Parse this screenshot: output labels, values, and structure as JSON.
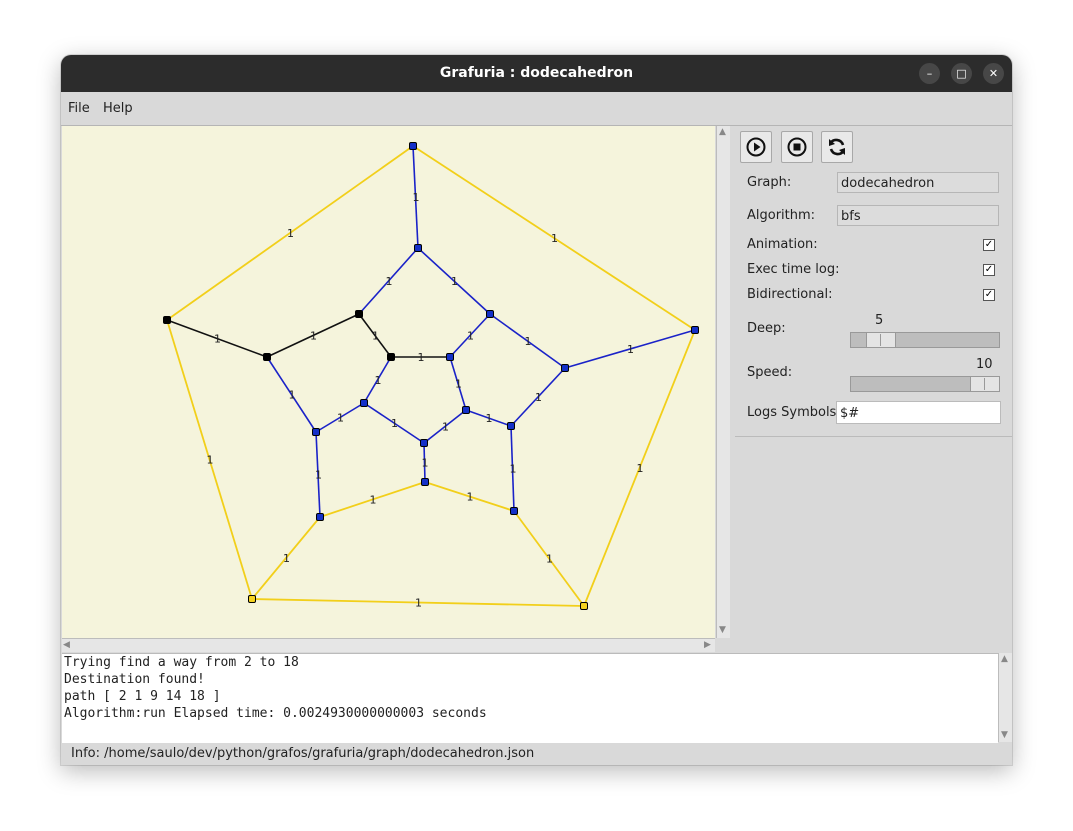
{
  "window": {
    "title": "Grafuria : dodecahedron",
    "controls": [
      "–",
      "□",
      "✕"
    ]
  },
  "menu": [
    "File",
    "Help"
  ],
  "toolbar": {
    "buttons": [
      {
        "name": "play-button",
        "icon": "play-icon"
      },
      {
        "name": "stop-button",
        "icon": "stop-icon"
      },
      {
        "name": "refresh-button",
        "icon": "refresh-icon"
      }
    ]
  },
  "panel": {
    "graph_label": "Graph:",
    "graph_value": "dodecahedron",
    "algorithm_label": "Algorithm:",
    "algorithm_value": "bfs",
    "animation_label": "Animation:",
    "animation_checked": true,
    "exec_time_label": "Exec time log:",
    "exec_time_checked": true,
    "bidirectional_label": "Bidirectional:",
    "bidirectional_checked": true,
    "deep_label": "Deep:",
    "deep_value": "5",
    "speed_label": "Speed:",
    "speed_value": "10",
    "logs_label": "Logs Symbols:",
    "logs_value": "$#"
  },
  "graph": {
    "edge_weight": "1",
    "colors": {
      "outer": "#f2cf1a",
      "visited": "#1a22c8",
      "path": "#111111",
      "background": "#f5f4dc",
      "node_path": "#000000",
      "node_visited": "#1430c8",
      "node_outer": "#f5d21f"
    }
  },
  "console": [
    "Trying find a way from 2 to 18",
    "Destination found!",
    "path [ 2 1 9 14 18 ]",
    "Algorithm:run Elapsed time: 0.0024930000000003 seconds"
  ],
  "status": "Info: /home/saulo/dev/python/grafos/grafuria/graph/dodecahedron.json"
}
